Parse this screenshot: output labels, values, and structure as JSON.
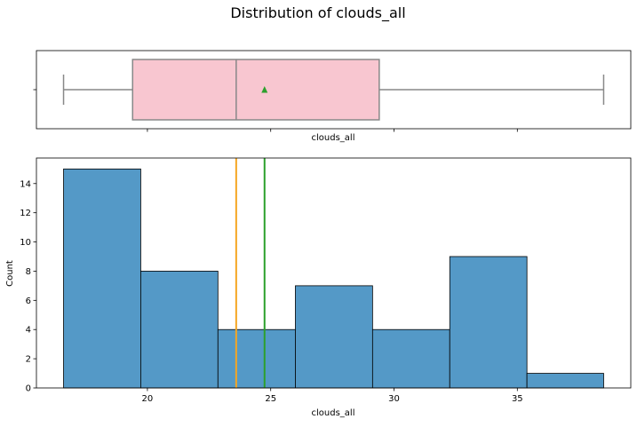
{
  "chart_data": {
    "type": "histogram",
    "title": "Distribution of clouds_all",
    "variable": "clouds_all",
    "boxplot": {
      "xlabel": "clouds_all",
      "whisker_low": 16.6,
      "q1": 19.4,
      "median": 23.6,
      "mean": 24.75,
      "q3": 29.4,
      "whisker_high": 38.5,
      "box_color": "#f8c6d0",
      "edge_color": "#888888",
      "mean_marker_color": "#2ca02c",
      "yticks": [
        ""
      ]
    },
    "histogram": {
      "xlabel": "clouds_all",
      "ylabel": "Count",
      "bin_edges": [
        16.6,
        19.73,
        22.86,
        26.0,
        29.13,
        32.26,
        35.39,
        38.5
      ],
      "counts": [
        15,
        8,
        4,
        7,
        4,
        9,
        1
      ],
      "ylim": [
        0,
        15.75
      ],
      "yticks": [
        0,
        2,
        4,
        6,
        8,
        10,
        12,
        14
      ],
      "bar_color": "#5499c7",
      "median_line": {
        "value": 23.6,
        "color": "#f5a623"
      },
      "mean_line": {
        "value": 24.75,
        "color": "#2ca02c"
      }
    },
    "xlim": [
      15.5,
      39.6
    ],
    "xticks": [
      20,
      25,
      30,
      35
    ]
  }
}
